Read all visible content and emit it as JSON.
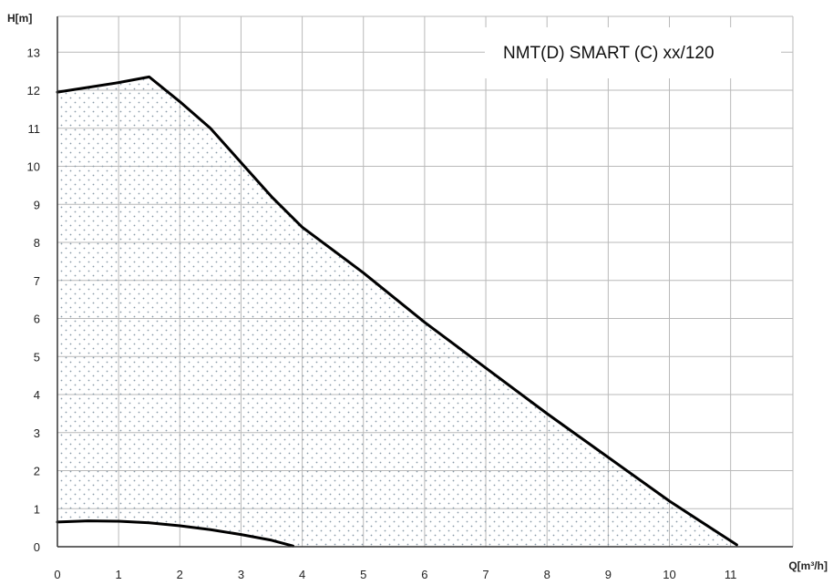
{
  "chart_data": {
    "type": "area",
    "title": "NMT(D) SMART (C) xx/120",
    "xlabel": "Q[m³/h]",
    "ylabel": "H[m]",
    "xlim": [
      0,
      11.5
    ],
    "ylim": [
      0,
      14
    ],
    "xticks": [
      0,
      1,
      2,
      3,
      4,
      5,
      6,
      7,
      8,
      9,
      10,
      11
    ],
    "yticks": [
      0,
      1,
      2,
      3,
      4,
      5,
      6,
      7,
      8,
      9,
      10,
      11,
      12,
      13
    ],
    "grid": true,
    "fill_pattern": "dotted",
    "series": [
      {
        "role": "max-curve",
        "points": [
          [
            0,
            11.95
          ],
          [
            1.0,
            12.2
          ],
          [
            1.5,
            12.35
          ],
          [
            2.0,
            11.7
          ],
          [
            2.5,
            11.0
          ],
          [
            3.0,
            10.1
          ],
          [
            3.5,
            9.2
          ],
          [
            4.0,
            8.4
          ],
          [
            5.0,
            7.2
          ],
          [
            6.0,
            5.9
          ],
          [
            7.0,
            4.7
          ],
          [
            8.0,
            3.5
          ],
          [
            9.0,
            2.35
          ],
          [
            10.0,
            1.2
          ],
          [
            11.1,
            0.05
          ]
        ]
      },
      {
        "role": "min-curve",
        "points": [
          [
            0,
            0.65
          ],
          [
            0.5,
            0.68
          ],
          [
            1.0,
            0.67
          ],
          [
            1.5,
            0.63
          ],
          [
            2.0,
            0.55
          ],
          [
            2.5,
            0.45
          ],
          [
            3.0,
            0.32
          ],
          [
            3.5,
            0.17
          ],
          [
            3.85,
            0.02
          ]
        ]
      }
    ]
  }
}
